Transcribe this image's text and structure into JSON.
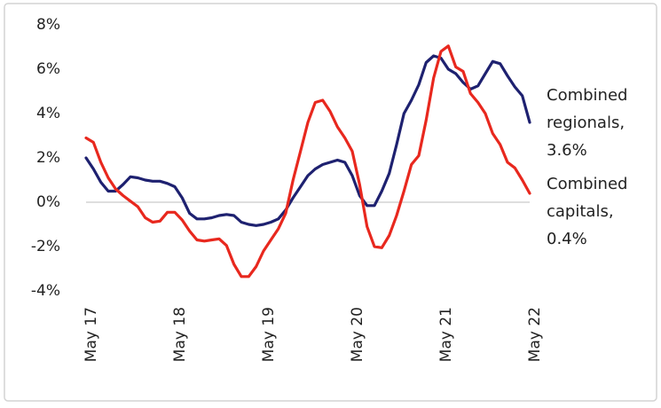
{
  "chart_data": {
    "type": "line",
    "categories": [
      "May 17",
      null,
      null,
      null,
      null,
      null,
      null,
      null,
      null,
      null,
      null,
      null,
      "May 18",
      null,
      null,
      null,
      null,
      null,
      null,
      null,
      null,
      null,
      null,
      null,
      "May 19",
      null,
      null,
      null,
      null,
      null,
      null,
      null,
      null,
      null,
      null,
      null,
      "May 20",
      null,
      null,
      null,
      null,
      null,
      null,
      null,
      null,
      null,
      null,
      null,
      "May 21",
      null,
      null,
      null,
      null,
      null,
      null,
      null,
      null,
      null,
      null,
      null,
      "May 22"
    ],
    "series": [
      {
        "color": "#1e2170",
        "values": [
          2.0,
          1.5,
          0.9,
          0.5,
          0.5,
          0.8,
          1.15,
          1.1,
          1.0,
          0.95,
          0.95,
          0.85,
          0.7,
          0.2,
          -0.5,
          -0.75,
          -0.75,
          -0.7,
          -0.6,
          -0.55,
          -0.6,
          -0.9,
          -1.0,
          -1.05,
          -1.0,
          -0.9,
          -0.75,
          -0.35,
          0.2,
          0.7,
          1.2,
          1.5,
          1.7,
          1.8,
          1.9,
          1.8,
          1.2,
          0.3,
          -0.15,
          -0.15,
          0.5,
          1.3,
          2.6,
          4.0,
          4.6,
          5.3,
          6.3,
          6.6,
          6.5,
          6.0,
          5.8,
          5.4,
          5.1,
          5.25,
          5.8,
          6.35,
          6.25,
          5.7,
          5.2,
          4.8,
          3.6
        ]
      },
      {
        "color": "#e8281e",
        "values": [
          2.9,
          2.7,
          1.8,
          1.1,
          0.6,
          0.3,
          0.05,
          -0.2,
          -0.7,
          -0.9,
          -0.85,
          -0.45,
          -0.45,
          -0.8,
          -1.3,
          -1.7,
          -1.75,
          -1.7,
          -1.65,
          -1.95,
          -2.8,
          -3.35,
          -3.35,
          -2.9,
          -2.2,
          -1.7,
          -1.2,
          -0.5,
          1.0,
          2.3,
          3.6,
          4.5,
          4.6,
          4.1,
          3.4,
          2.9,
          2.3,
          0.8,
          -1.1,
          -2.0,
          -2.05,
          -1.5,
          -0.6,
          0.5,
          1.7,
          2.1,
          3.7,
          5.6,
          6.8,
          7.05,
          6.1,
          5.9,
          4.9,
          4.5,
          4.0,
          3.1,
          2.6,
          1.8,
          1.55,
          1.0,
          0.4
        ]
      }
    ],
    "annotations": [
      {
        "lines": [
          "Combined",
          "regionals,",
          "3.6%"
        ],
        "color": "#1e2170"
      },
      {
        "lines": [
          "Combined",
          "capitals,",
          "0.4%"
        ],
        "color": "#e8281e"
      }
    ],
    "ylim": [
      -4,
      8
    ],
    "yticks": [
      {
        "value": -4,
        "label": "-4%"
      },
      {
        "value": -2,
        "label": "-2%"
      },
      {
        "value": 0,
        "label": "0%"
      },
      {
        "value": 2,
        "label": "2%"
      },
      {
        "value": 4,
        "label": "4%"
      },
      {
        "value": 6,
        "label": "6%"
      },
      {
        "value": 8,
        "label": "8%"
      }
    ],
    "zero_line": true
  }
}
